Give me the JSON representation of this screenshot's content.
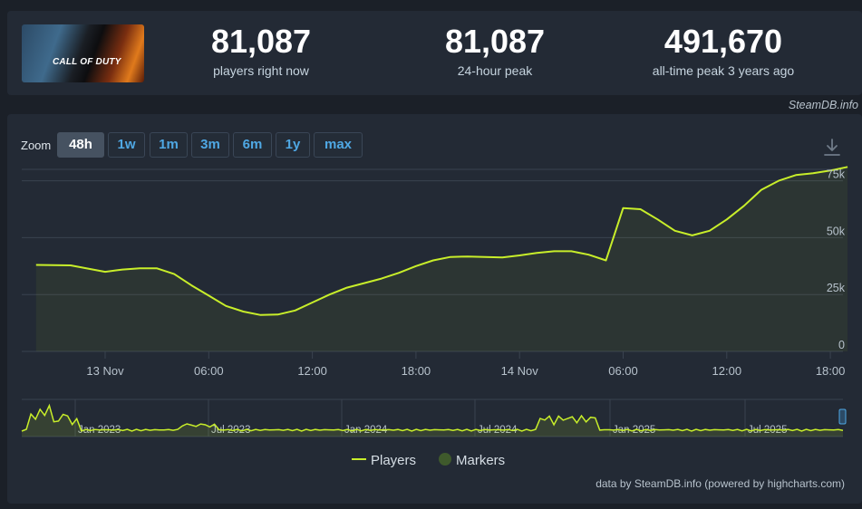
{
  "header": {
    "game_thumb_logo": "CALL OF DUTY",
    "stats": [
      {
        "value": "81,087",
        "label": "players right now"
      },
      {
        "value": "81,087",
        "label": "24-hour peak"
      },
      {
        "value": "491,670",
        "label": "all-time peak 3 years ago"
      }
    ]
  },
  "credit_top": "SteamDB.info",
  "zoom": {
    "label": "Zoom",
    "buttons": [
      "48h",
      "1w",
      "1m",
      "3m",
      "6m",
      "1y",
      "max"
    ],
    "active": "48h"
  },
  "colors": {
    "line": "#c8ee2a",
    "marker": "#3f5a2c",
    "grid": "#3a4350",
    "label": "#b7c2cc"
  },
  "chart_data": [
    {
      "type": "line",
      "ylim": [
        0,
        80000
      ],
      "grid": true,
      "y_ticks": [
        0,
        25000,
        50000,
        75000
      ],
      "y_tick_labels": [
        "0",
        "25k",
        "50k",
        "75k"
      ],
      "x_tick_labels": [
        "13 Nov",
        "06:00",
        "12:00",
        "18:00",
        "14 Nov",
        "06:00",
        "12:00",
        "18:00"
      ],
      "x_ticks_hours": [
        0,
        6,
        12,
        18,
        24,
        30,
        36,
        42
      ],
      "series": [
        {
          "name": "Players",
          "x_hours": [
            -4.0,
            -2.0,
            0.0,
            1.0,
            2.0,
            3.0,
            4.0,
            5.0,
            6.0,
            7.0,
            8.0,
            9.0,
            10.0,
            11.0,
            12.0,
            13.0,
            14.0,
            15.0,
            16.0,
            17.0,
            18.0,
            19.0,
            20.0,
            21.0,
            22.0,
            23.0,
            24.0,
            25.0,
            26.0,
            27.0,
            28.0,
            29.0,
            30.0,
            31.0,
            32.0,
            33.0,
            34.0,
            35.0,
            36.0,
            37.0,
            38.0,
            39.0,
            40.0,
            41.0,
            42.0,
            43.0
          ],
          "values": [
            38000,
            37800,
            35000,
            36000,
            36500,
            36500,
            34000,
            29000,
            24500,
            20000,
            17500,
            16000,
            16200,
            18000,
            21500,
            25000,
            28000,
            30000,
            32000,
            34500,
            37500,
            40000,
            41500,
            41700,
            41500,
            41300,
            42200,
            43300,
            44000,
            44000,
            42500,
            40000,
            63000,
            62500,
            58000,
            53000,
            51000,
            53000,
            58000,
            64000,
            71000,
            75000,
            77500,
            78300,
            79500,
            81087
          ]
        }
      ]
    },
    {
      "type": "area",
      "x_tick_labels": [
        "Jan 2023",
        "Jul 2023",
        "Jan 2024",
        "Jul 2024",
        "Jan 2025",
        "Jul 2025"
      ],
      "series": [
        {
          "name": "Players",
          "values": [
            60,
            120,
            450,
            300,
            380,
            491670,
            350,
            280,
            320,
            240,
            200,
            160,
            140,
            130,
            120,
            110,
            105,
            100,
            95,
            92,
            90,
            88,
            86,
            85,
            84,
            83,
            82,
            82,
            81,
            81,
            80,
            80,
            79,
            79,
            78,
            78,
            90,
            85,
            80,
            78,
            76,
            75,
            74,
            73,
            72,
            72,
            71,
            70,
            70,
            69,
            69,
            68,
            68,
            67,
            120,
            140,
            110,
            100,
            95,
            92,
            90,
            88,
            86,
            84,
            82,
            80,
            79,
            78,
            77,
            76,
            75,
            74,
            73,
            72,
            71,
            70,
            70,
            69,
            68,
            68,
            67,
            66,
            66,
            65,
            65,
            64,
            64,
            63,
            63,
            62,
            62,
            61,
            61,
            60,
            60,
            59,
            59,
            58,
            58,
            57,
            57,
            56,
            56,
            55,
            55,
            54,
            54,
            53,
            53,
            52,
            52,
            51,
            60,
            58,
            56,
            55,
            54,
            53,
            52,
            51,
            50,
            49,
            48,
            47,
            46,
            45,
            44,
            43,
            42,
            42,
            41,
            41,
            40,
            40,
            39,
            39,
            38,
            38,
            37,
            37,
            36,
            36,
            35,
            35,
            34,
            34,
            33,
            33,
            32,
            32,
            31,
            31,
            30,
            30,
            29,
            29,
            28,
            28,
            27,
            27,
            26,
            26,
            25,
            25,
            24,
            24,
            23,
            23,
            22,
            22,
            21,
            21,
            20,
            20,
            19,
            19,
            18,
            18,
            17,
            17,
            16,
            16,
            15,
            15,
            14,
            14,
            13,
            13,
            12,
            12,
            11,
            11,
            10,
            10,
            9,
            9,
            8,
            8,
            7,
            7
          ]
        }
      ]
    }
  ],
  "legend": [
    {
      "label": "Players"
    },
    {
      "label": "Markers"
    }
  ],
  "credit_bottom": "data by SteamDB.info (powered by highcharts.com)"
}
